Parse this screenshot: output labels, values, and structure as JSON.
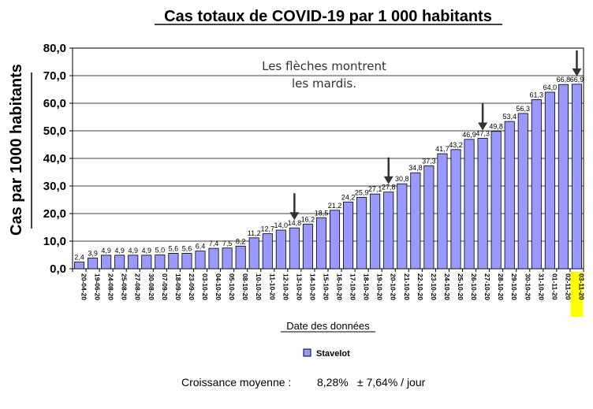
{
  "chart_data": {
    "type": "bar",
    "title": "Cas totaux de COVID-19 par 1 000 habitants",
    "xlabel": "Date des données",
    "ylabel": "Cas par 1000 habitants",
    "ylim": [
      0,
      80
    ],
    "yticks": [
      "0,0",
      "10,0",
      "20,0",
      "30,0",
      "40,0",
      "50,0",
      "60,0",
      "70,0",
      "80,0"
    ],
    "grid": true,
    "legend_position": "bottom-center",
    "categories": [
      "20-04-20",
      "19-06-20",
      "24-08-20",
      "25-08-20",
      "27-08-20",
      "30-08-20",
      "07-09-20",
      "18-09-20",
      "23-09-20",
      "03-10-20",
      "04-10-20",
      "05-10-20",
      "08-10-20",
      "10-10-20",
      "11-10-20",
      "12-10-20",
      "13-10-20",
      "14-10-20",
      "15-10-20",
      "16-10-20",
      "17-10-20",
      "18-10-20",
      "19-10-20",
      "20-10-20",
      "21-10-20",
      "22-10-20",
      "23-10-20",
      "24-10-20",
      "25-10-20",
      "26-10-20",
      "27-10-20",
      "28-10-20",
      "29-10-20",
      "30-10-20",
      "31-10-20",
      "01-11-20",
      "02-11-20",
      "03-11-20"
    ],
    "series": [
      {
        "name": "Stavelot",
        "color": "#9999ff",
        "values": [
          2.4,
          3.9,
          4.9,
          4.9,
          4.9,
          4.9,
          5.0,
          5.6,
          5.6,
          6.4,
          7.4,
          7.5,
          8.2,
          11.2,
          12.7,
          14.0,
          14.8,
          16.2,
          18.5,
          21.2,
          24.2,
          25.9,
          27.1,
          27.8,
          30.8,
          34.8,
          37.3,
          41.7,
          43.2,
          46.9,
          47.3,
          49.8,
          53.4,
          56.3,
          61.3,
          64.0,
          66.8,
          66.9
        ],
        "labels": [
          "2,4",
          "3,9",
          "4,9",
          "4,9",
          "4,9",
          "4,9",
          "5,0",
          "5,6",
          "5,6",
          "6,4",
          "7,4",
          "7,5",
          "8,2",
          "11,2",
          "12,7",
          "14,0",
          "14,8",
          "16,2",
          "18,5",
          "21,2",
          "24,2",
          "25,9",
          "27,1",
          "27,8",
          "30,8",
          "34,8",
          "37,3",
          "41,7",
          "43,2",
          "46,9",
          "47,3",
          "49,8",
          "53,4",
          "56,3",
          "61,3",
          "64,0",
          "66,8",
          "66,9"
        ]
      }
    ],
    "highlighted_category": "03-11-20",
    "highlight_color": "#ffff00",
    "arrow_categories": [
      "13-10-20",
      "20-10-20",
      "27-10-20",
      "03-11-20"
    ],
    "annotation_lines": [
      "Les flèches montrent",
      "les mardis."
    ]
  },
  "footer": {
    "label": "Croissance moyenne :",
    "value": "8,28%",
    "range": "± 7,64% / jour"
  }
}
